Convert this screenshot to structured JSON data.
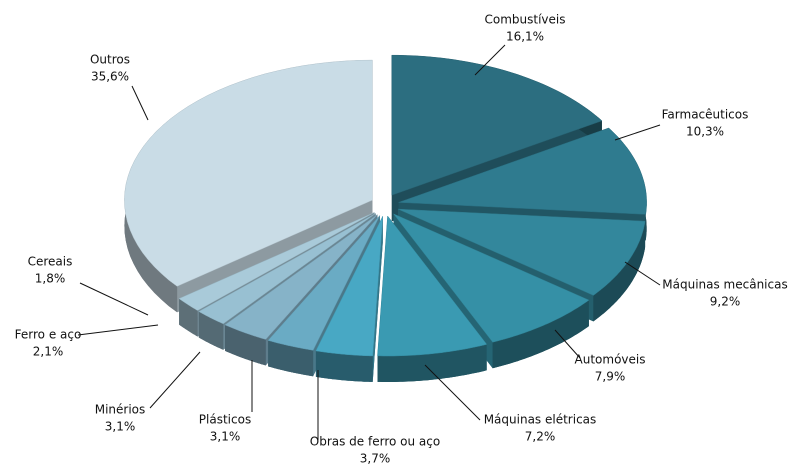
{
  "chart_data": {
    "type": "pie",
    "categories": [
      "Combustíveis",
      "Farmacêuticos",
      "Máquinas mecânicas",
      "Automóveis",
      "Máquinas elétricas",
      "Obras de ferro ou aço",
      "Plásticos",
      "Minérios",
      "Ferro e aço",
      "Cereais",
      "Outros"
    ],
    "values": [
      16.1,
      10.3,
      9.2,
      7.9,
      7.2,
      3.7,
      3.1,
      3.1,
      2.1,
      1.8,
      35.6
    ],
    "value_labels": [
      "16,1%",
      "10,3%",
      "9,2%",
      "7,9%",
      "7,2%",
      "3,7%",
      "3,1%",
      "3,1%",
      "2,1%",
      "1,8%",
      "35,6%"
    ],
    "colors": [
      "#2c6e80",
      "#2f7b8f",
      "#33879c",
      "#3590a6",
      "#3a9ab2",
      "#48a8c4",
      "#6aabc4",
      "#86b3c8",
      "#98c0d2",
      "#a9cad9",
      "#c9dce6"
    ]
  }
}
